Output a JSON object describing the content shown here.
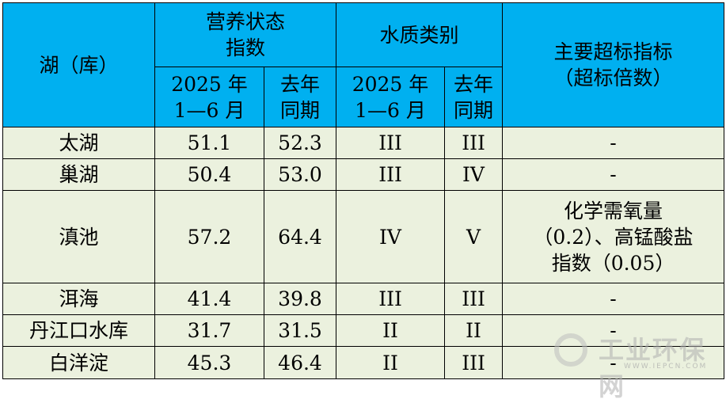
{
  "header": {
    "lake": "湖（库）",
    "trophic": "营养状态\n指数",
    "water_class": "水质类别",
    "exceed": "主要超标指标\n（超标倍数）",
    "period_current": "2025 年\n1—6 月",
    "period_last": "去年\n同期"
  },
  "rows": [
    {
      "lake": "太湖",
      "tsi_2025": "51.1",
      "tsi_last": "52.3",
      "class_2025": "III",
      "class_last": "III",
      "exceed": "-"
    },
    {
      "lake": "巢湖",
      "tsi_2025": "50.4",
      "tsi_last": "53.0",
      "class_2025": "III",
      "class_last": "IV",
      "exceed": "-"
    },
    {
      "lake": "滇池",
      "tsi_2025": "57.2",
      "tsi_last": "64.4",
      "class_2025": "IV",
      "class_last": "V",
      "exceed": "化学需氧量\n（0.2）、高锰酸盐\n指数（0.05）"
    },
    {
      "lake": "洱海",
      "tsi_2025": "41.4",
      "tsi_last": "39.8",
      "class_2025": "III",
      "class_last": "III",
      "exceed": "-"
    },
    {
      "lake": "丹江口水库",
      "tsi_2025": "31.7",
      "tsi_last": "31.5",
      "class_2025": "II",
      "class_last": "II",
      "exceed": "-"
    },
    {
      "lake": "白洋淀",
      "tsi_2025": "45.3",
      "tsi_last": "46.4",
      "class_2025": "II",
      "class_last": "III",
      "exceed": "-"
    }
  ],
  "watermark": {
    "title": "工业环保网",
    "url": "WWW.IEPCN.COM"
  },
  "colors": {
    "header_bg": "#00b0f0",
    "body_bg": "#ebf1de",
    "border": "#000000"
  }
}
